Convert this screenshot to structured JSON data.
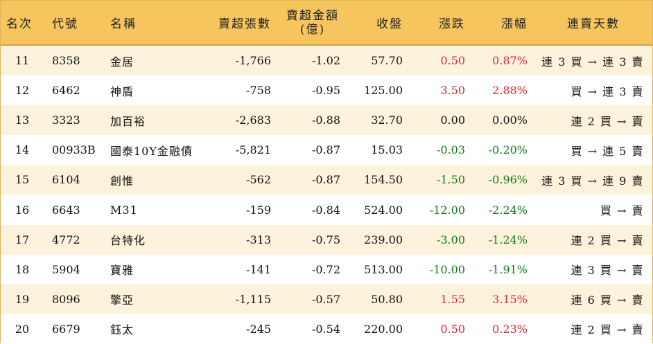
{
  "colors": {
    "header_bg": "#f6c55e",
    "odd_row_bg": "#fdf3dc",
    "up": "#e3242b",
    "down": "#0f7a18"
  },
  "headers": {
    "rank": "名次",
    "code": "代號",
    "name": "名稱",
    "sheets": "賣超張數",
    "amount_line1": "賣超金額",
    "amount_line2": "(億)",
    "close": "收盤",
    "chg": "漲跌",
    "pct": "漲幅",
    "days": "連賣天數"
  },
  "rows": [
    {
      "rank": "11",
      "code": "8358",
      "name": "金居",
      "sheets": "-1,766",
      "amount": "-1.02",
      "close": "57.70",
      "chg": "0.50",
      "pct": "0.87%",
      "days": "連 3 買 → 連 3 賣",
      "dir": "up"
    },
    {
      "rank": "12",
      "code": "6462",
      "name": "神盾",
      "sheets": "-758",
      "amount": "-0.95",
      "close": "125.00",
      "chg": "3.50",
      "pct": "2.88%",
      "days": "買 → 連 3 賣",
      "dir": "up"
    },
    {
      "rank": "13",
      "code": "3323",
      "name": "加百裕",
      "sheets": "-2,683",
      "amount": "-0.88",
      "close": "32.70",
      "chg": "0.00",
      "pct": "0.00%",
      "days": "連 2 買 → 賣",
      "dir": "flat"
    },
    {
      "rank": "14",
      "code": "00933B",
      "name": "國泰10Y金融債",
      "sheets": "-5,821",
      "amount": "-0.87",
      "close": "15.03",
      "chg": "-0.03",
      "pct": "-0.20%",
      "days": "買 → 連 5 賣",
      "dir": "down"
    },
    {
      "rank": "15",
      "code": "6104",
      "name": "創惟",
      "sheets": "-562",
      "amount": "-0.87",
      "close": "154.50",
      "chg": "-1.50",
      "pct": "-0.96%",
      "days": "連 3 買 → 連 9 賣",
      "dir": "down"
    },
    {
      "rank": "16",
      "code": "6643",
      "name": "M31",
      "sheets": "-159",
      "amount": "-0.84",
      "close": "524.00",
      "chg": "-12.00",
      "pct": "-2.24%",
      "days": "買 → 賣",
      "dir": "down"
    },
    {
      "rank": "17",
      "code": "4772",
      "name": "台特化",
      "sheets": "-313",
      "amount": "-0.75",
      "close": "239.00",
      "chg": "-3.00",
      "pct": "-1.24%",
      "days": "連 2 買 → 賣",
      "dir": "down"
    },
    {
      "rank": "18",
      "code": "5904",
      "name": "寶雅",
      "sheets": "-141",
      "amount": "-0.72",
      "close": "513.00",
      "chg": "-10.00",
      "pct": "-1.91%",
      "days": "連 3 買 → 賣",
      "dir": "down"
    },
    {
      "rank": "19",
      "code": "8096",
      "name": "擎亞",
      "sheets": "-1,115",
      "amount": "-0.57",
      "close": "50.80",
      "chg": "1.55",
      "pct": "3.15%",
      "days": "連 6 買 → 賣",
      "dir": "up"
    },
    {
      "rank": "20",
      "code": "6679",
      "name": "鈺太",
      "sheets": "-245",
      "amount": "-0.54",
      "close": "220.00",
      "chg": "0.50",
      "pct": "0.23%",
      "days": "連 2 買 → 賣",
      "dir": "up"
    }
  ]
}
